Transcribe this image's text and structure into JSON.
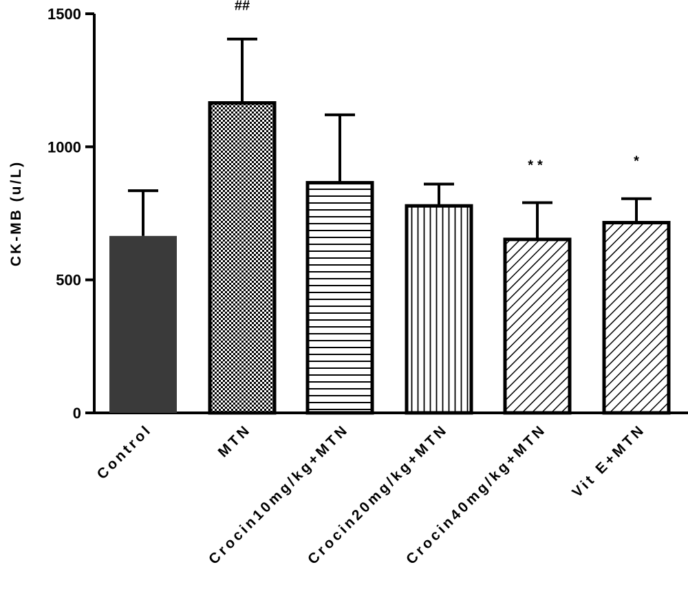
{
  "chart_data": {
    "type": "bar",
    "ylabel": "CK-MB (u/L)",
    "ylim": [
      0,
      1500
    ],
    "yticks": [
      0,
      500,
      1000,
      1500
    ],
    "ytick_labels": [
      "0",
      "500",
      "1000",
      "1500"
    ],
    "categories": [
      "Control",
      "MTN",
      "Crocin10mg/kg+MTN",
      "Crocin20mg/kg+MTN",
      "Crocin40mg/kg+MTN",
      "Vit E+MTN"
    ],
    "values": [
      665,
      1165,
      865,
      778,
      652,
      715
    ],
    "error_upper": [
      835,
      1405,
      1120,
      860,
      790,
      805
    ],
    "annotations": [
      "",
      "##",
      "",
      "",
      "**",
      "*"
    ],
    "fill_patterns": [
      "solid-dark",
      "checker",
      "horizontal-lines",
      "vertical-lines",
      "diagonal-lines",
      "diagonal-lines"
    ],
    "bar_color": "#3a3a3a",
    "outline_color": "#000000"
  }
}
